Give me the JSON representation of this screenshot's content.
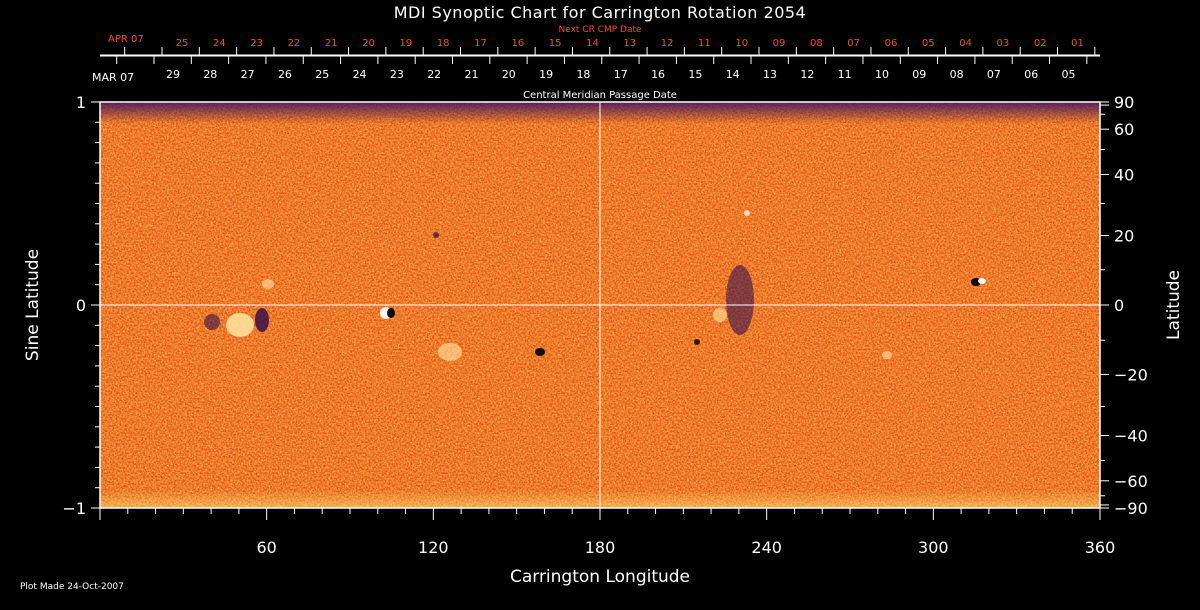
{
  "chart_data": {
    "type": "heatmap",
    "title": "MDI Synoptic Chart for Carrington Rotation 2054",
    "xlabel": "Carrington Longitude",
    "ylabel_left": "Sine Latitude",
    "ylabel_right": "Latitude",
    "xlim": [
      0,
      360
    ],
    "ylim": [
      -1,
      1
    ],
    "x_ticks": [
      60,
      120,
      180,
      240,
      300,
      360
    ],
    "y_left_ticks": [
      {
        "value": 1,
        "label": "1"
      },
      {
        "value": 0,
        "label": "0"
      },
      {
        "value": -1,
        "label": "−1"
      }
    ],
    "y_right_ticks": [
      {
        "lat": 90,
        "label": "90"
      },
      {
        "lat": 60,
        "label": "60"
      },
      {
        "lat": 40,
        "label": "40"
      },
      {
        "lat": 20,
        "label": "20"
      },
      {
        "lat": 0,
        "label": "0"
      },
      {
        "lat": -20,
        "label": "−20"
      },
      {
        "lat": -40,
        "label": "−40"
      },
      {
        "lat": -60,
        "label": "−60"
      },
      {
        "lat": -90,
        "label": "−90"
      }
    ],
    "cmp_axis": {
      "start_month": "MAR 07",
      "label": "Central Meridian Passage Date",
      "days": [
        "29",
        "28",
        "27",
        "26",
        "25",
        "24",
        "23",
        "22",
        "21",
        "20",
        "19",
        "18",
        "17",
        "16",
        "15",
        "14",
        "13",
        "12",
        "11",
        "10",
        "09",
        "08",
        "07",
        "06",
        "05"
      ]
    },
    "next_cmp_axis": {
      "start_month": "APR 07",
      "label": "Next CR CMP Date",
      "days": [
        "25",
        "24",
        "23",
        "22",
        "21",
        "20",
        "19",
        "18",
        "17",
        "16",
        "15",
        "14",
        "13",
        "12",
        "11",
        "10",
        "09",
        "08",
        "07",
        "06",
        "05",
        "04",
        "03",
        "02",
        "01"
      ]
    },
    "grid": true,
    "colors": {
      "background": "#000000",
      "map_base": "#e8541a",
      "map_dark": "#b52a0a",
      "map_light": "#ff9a3c",
      "strong_positive": "#ffffff",
      "strong_negative": "#1a0a3a",
      "next_cmp_text": "#ff4a1c"
    }
  },
  "footer": {
    "plot_made": "Plot Made 24-Oct-2007"
  }
}
